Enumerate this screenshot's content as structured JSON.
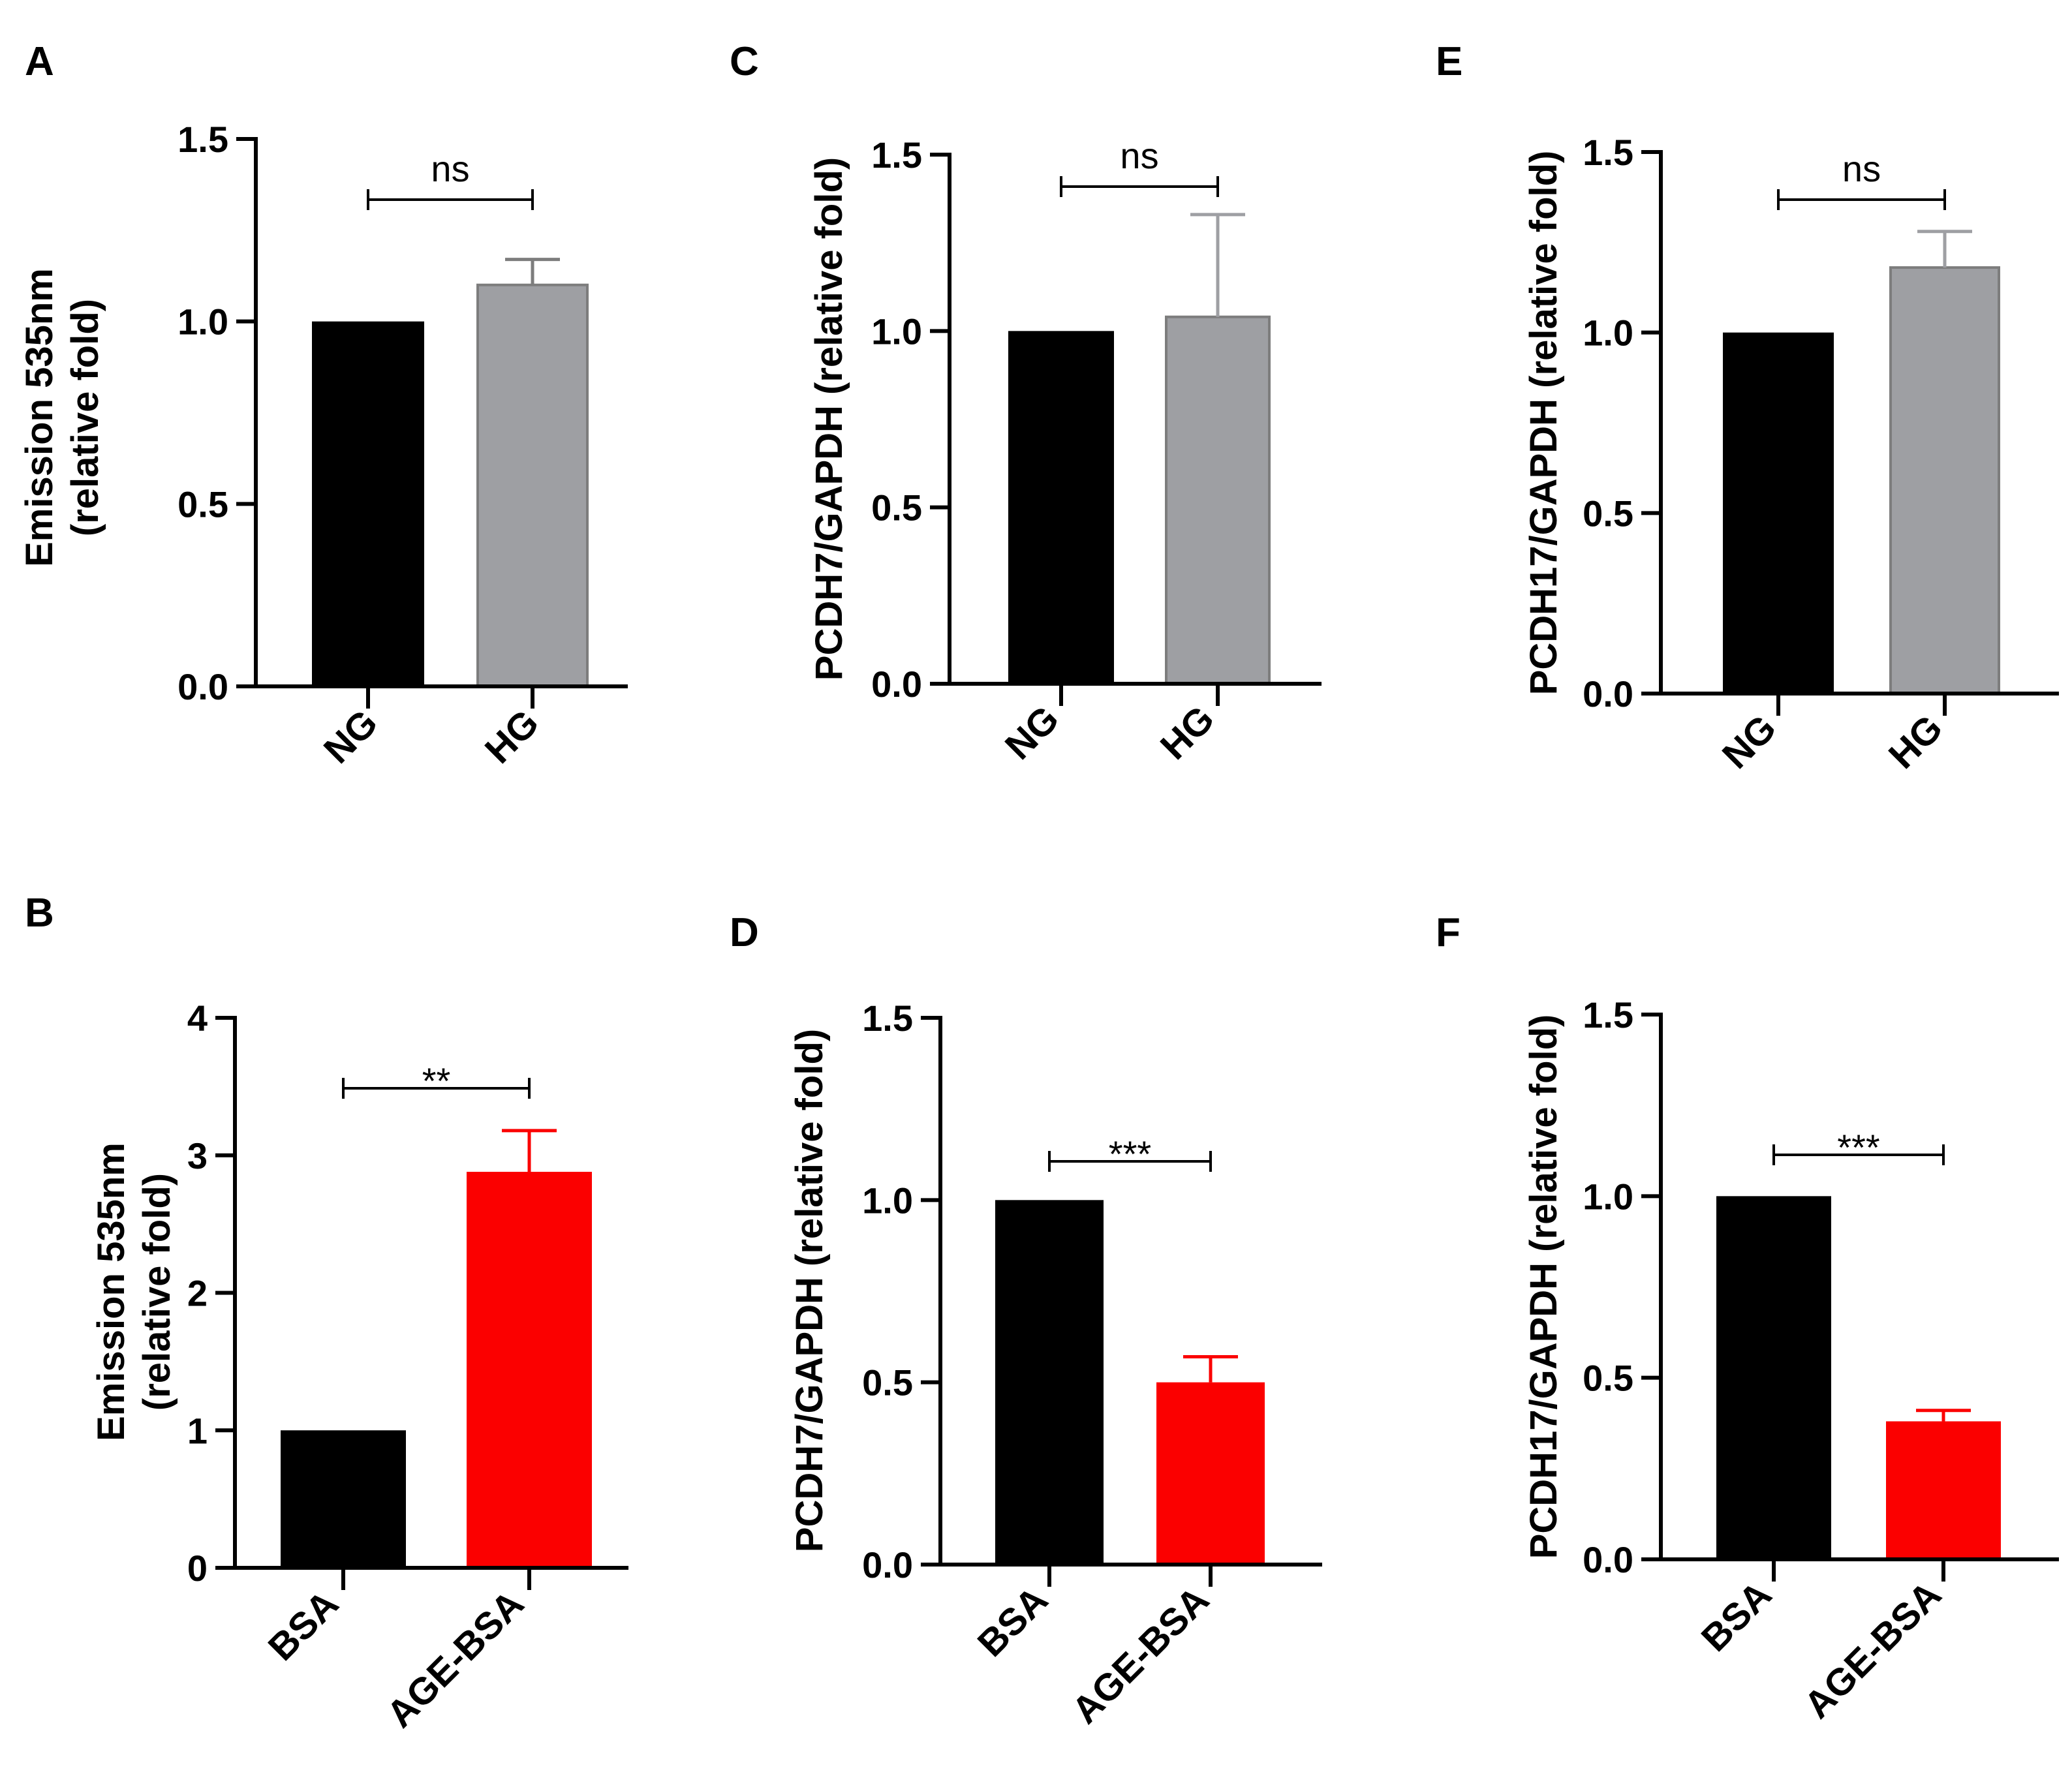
{
  "chart_data": [
    {
      "type": "bar",
      "panel": "A",
      "categories": [
        "NG",
        "HG"
      ],
      "values": [
        1.0,
        1.1
      ],
      "errors": [
        0,
        0.07
      ],
      "colors": [
        "#000000",
        "#9e9fa3"
      ],
      "errorColors": [
        "#000000",
        "#7d7d7d"
      ],
      "ylabel": [
        "Emission 535nm",
        "(relative fold)"
      ],
      "ylim": [
        0,
        1.5
      ],
      "yticks": [
        "0.0",
        "0.5",
        "1.0",
        "1.5"
      ],
      "significance": "ns"
    },
    {
      "type": "bar",
      "panel": "B",
      "categories": [
        "BSA",
        "AGE-BSA"
      ],
      "values": [
        1.0,
        2.88
      ],
      "errors": [
        0,
        0.3
      ],
      "colors": [
        "#000000",
        "#fb0000"
      ],
      "errorColors": [
        "#000000",
        "#fb0000"
      ],
      "ylabel": [
        "Emission 535nm",
        "(relative fold)"
      ],
      "ylim": [
        0,
        4
      ],
      "yticks": [
        "0",
        "1",
        "2",
        "3",
        "4"
      ],
      "significance": "**"
    },
    {
      "type": "bar",
      "panel": "C",
      "categories": [
        "NG",
        "HG"
      ],
      "values": [
        1.0,
        1.04
      ],
      "errors": [
        0,
        0.29
      ],
      "colors": [
        "#000000",
        "#9e9fa3"
      ],
      "errorColors": [
        "#000000",
        "#9e9fa3"
      ],
      "ylabel": [
        "PCDH7/GAPDH (relative fold)"
      ],
      "ylim": [
        0,
        1.5
      ],
      "yticks": [
        "0.0",
        "0.5",
        "1.0",
        "1.5"
      ],
      "significance": "ns"
    },
    {
      "type": "bar",
      "panel": "D",
      "categories": [
        "BSA",
        "AGE-BSA"
      ],
      "values": [
        1.0,
        0.5
      ],
      "errors": [
        0,
        0.07
      ],
      "colors": [
        "#000000",
        "#fb0000"
      ],
      "errorColors": [
        "#000000",
        "#fb0000"
      ],
      "ylabel": [
        "PCDH7/GAPDH (relative fold)"
      ],
      "ylim": [
        0,
        1.5
      ],
      "yticks": [
        "0.0",
        "0.5",
        "1.0",
        "1.5"
      ],
      "significance": "***"
    },
    {
      "type": "bar",
      "panel": "E",
      "categories": [
        "NG",
        "HG"
      ],
      "values": [
        1.0,
        1.18
      ],
      "errors": [
        0,
        0.1
      ],
      "colors": [
        "#000000",
        "#9e9fa3"
      ],
      "errorColors": [
        "#000000",
        "#9e9fa3"
      ],
      "ylabel": [
        "PCDH17/GAPDH (relative fold)"
      ],
      "ylim": [
        0,
        1.5
      ],
      "yticks": [
        "0.0",
        "0.5",
        "1.0",
        "1.5"
      ],
      "significance": "ns"
    },
    {
      "type": "bar",
      "panel": "F",
      "categories": [
        "BSA",
        "AGE-BSA"
      ],
      "values": [
        1.0,
        0.38
      ],
      "errors": [
        0,
        0.03
      ],
      "colors": [
        "#000000",
        "#fb0000"
      ],
      "errorColors": [
        "#000000",
        "#fb0000"
      ],
      "ylabel": [
        "PCDH17/GAPDH (relative fold)"
      ],
      "ylim": [
        0,
        1.5
      ],
      "yticks": [
        "0.0",
        "0.5",
        "1.0",
        "1.5"
      ],
      "significance": "***"
    }
  ]
}
